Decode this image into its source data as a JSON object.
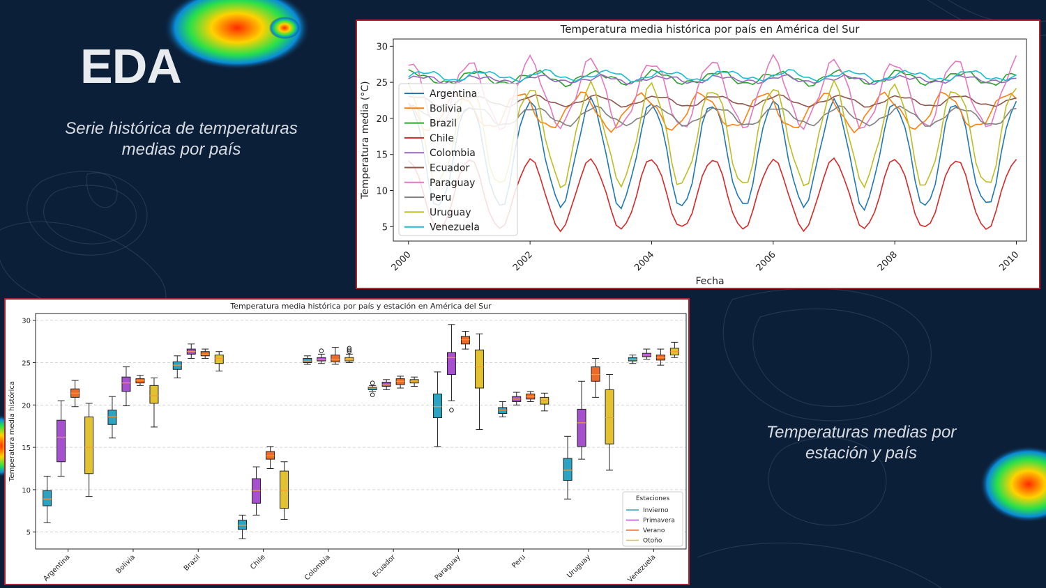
{
  "slide": {
    "title": "EDA",
    "caption_line_chart": "Serie histórica de temperaturas medias por país",
    "caption_box_chart": "Temperaturas medias por estación y país"
  },
  "colors": {
    "background": "#0c1f38",
    "panel_border": "#b3232d"
  },
  "chart_data": [
    {
      "type": "line",
      "title": "Temperatura media histórica por país en América del Sur",
      "xlabel": "Fecha",
      "ylabel": "Temperatura media (°C)",
      "x_ticks": [
        "2000",
        "2002",
        "2004",
        "2006",
        "2008",
        "2010"
      ],
      "y_ticks": [
        5,
        10,
        15,
        20,
        25,
        30
      ],
      "xlim": [
        "1999-10",
        "2010-03"
      ],
      "ylim": [
        3,
        31
      ],
      "x_range": [
        "2000-01",
        "2010-01"
      ],
      "grid": false,
      "legend": "upper left",
      "series": [
        {
          "name": "Argentina",
          "color": "#1f77b4",
          "mean": 15.0,
          "amplitude": 7.2,
          "peak_month": 1,
          "noise": 0.6
        },
        {
          "name": "Bolivia",
          "color": "#ff7f0e",
          "mean": 21.0,
          "amplitude": 2.4,
          "peak_month": 11,
          "noise": 0.5
        },
        {
          "name": "Brazil",
          "color": "#2ca02c",
          "mean": 25.6,
          "amplitude": 0.8,
          "peak_month": 2,
          "noise": 0.4
        },
        {
          "name": "Chile",
          "color": "#d62728",
          "mean": 9.5,
          "amplitude": 4.8,
          "peak_month": 1,
          "noise": 0.3
        },
        {
          "name": "Colombia",
          "color": "#9467bd",
          "mean": 25.4,
          "amplitude": 0.4,
          "peak_month": 3,
          "noise": 0.3
        },
        {
          "name": "Ecuador",
          "color": "#8c564b",
          "mean": 22.4,
          "amplitude": 0.7,
          "peak_month": 2,
          "noise": 0.2
        },
        {
          "name": "Paraguay",
          "color": "#e377c2",
          "mean": 23.4,
          "amplitude": 4.6,
          "peak_month": 1,
          "noise": 0.7
        },
        {
          "name": "Peru",
          "color": "#7f7f7f",
          "mean": 20.3,
          "amplitude": 1.2,
          "peak_month": 2,
          "noise": 0.3
        },
        {
          "name": "Uruguay",
          "color": "#bcbd22",
          "mean": 17.6,
          "amplitude": 6.8,
          "peak_month": 1,
          "noise": 0.8
        },
        {
          "name": "Venezuela",
          "color": "#17becf",
          "mean": 25.9,
          "amplitude": 0.6,
          "peak_month": 4,
          "noise": 0.3
        }
      ]
    },
    {
      "type": "box",
      "title": "Temperatura media histórica por país y estación en América del Sur",
      "xlabel": "",
      "ylabel": "Temperatura media histórica",
      "y_ticks": [
        5,
        10,
        15,
        20,
        25,
        30
      ],
      "ylim": [
        3,
        30.8
      ],
      "grid": "y dashed",
      "categories": [
        "Argentina",
        "Bolivia",
        "Brazil",
        "Chile",
        "Colombia",
        "Ecuador",
        "Paraguay",
        "Peru",
        "Uruguay",
        "Venezuela"
      ],
      "legend": {
        "title": "Estaciones",
        "position": "lower right",
        "entries": [
          "Invierno",
          "Primavera",
          "Verano",
          "Otoño"
        ]
      },
      "season_colors": {
        "Invierno": "#2ba3c2",
        "Primavera": "#a64fcf",
        "Verano": "#ee6a28",
        "Otoño": "#e3c232"
      },
      "boxes": {
        "Argentina": {
          "Invierno": {
            "min": 6.1,
            "q1": 8.1,
            "median": 8.9,
            "q3": 9.9,
            "max": 11.6,
            "outliers": []
          },
          "Primavera": {
            "min": 11.6,
            "q1": 13.3,
            "median": 16.2,
            "q3": 18.2,
            "max": 20.5,
            "outliers": []
          },
          "Verano": {
            "min": 19.8,
            "q1": 20.9,
            "median": 21.4,
            "q3": 21.9,
            "max": 22.9,
            "outliers": []
          },
          "Otoño": {
            "min": 9.2,
            "q1": 11.9,
            "median": 15.0,
            "q3": 18.6,
            "max": 20.2,
            "outliers": []
          }
        },
        "Bolivia": {
          "Invierno": {
            "min": 16.1,
            "q1": 17.7,
            "median": 18.6,
            "q3": 19.4,
            "max": 21.0,
            "outliers": []
          },
          "Primavera": {
            "min": 19.9,
            "q1": 21.6,
            "median": 22.6,
            "q3": 23.3,
            "max": 24.5,
            "outliers": []
          },
          "Verano": {
            "min": 22.3,
            "q1": 22.6,
            "median": 22.9,
            "q3": 23.1,
            "max": 23.5,
            "outliers": []
          },
          "Otoño": {
            "min": 17.4,
            "q1": 20.2,
            "median": 21.1,
            "q3": 22.3,
            "max": 23.2,
            "outliers": []
          }
        },
        "Brazil": {
          "Invierno": {
            "min": 23.2,
            "q1": 24.2,
            "median": 24.7,
            "q3": 25.1,
            "max": 25.8,
            "outliers": []
          },
          "Primavera": {
            "min": 25.5,
            "q1": 26.0,
            "median": 26.3,
            "q3": 26.6,
            "max": 27.2,
            "outliers": []
          },
          "Verano": {
            "min": 25.5,
            "q1": 25.8,
            "median": 26.0,
            "q3": 26.3,
            "max": 26.6,
            "outliers": []
          },
          "Otoño": {
            "min": 24.0,
            "q1": 24.9,
            "median": 25.5,
            "q3": 25.9,
            "max": 26.3,
            "outliers": []
          }
        },
        "Chile": {
          "Invierno": {
            "min": 4.2,
            "q1": 5.3,
            "median": 5.8,
            "q3": 6.4,
            "max": 7.0,
            "outliers": []
          },
          "Primavera": {
            "min": 7.0,
            "q1": 8.4,
            "median": 9.9,
            "q3": 11.3,
            "max": 12.7,
            "outliers": []
          },
          "Verano": {
            "min": 12.5,
            "q1": 13.6,
            "median": 14.0,
            "q3": 14.5,
            "max": 15.1,
            "outliers": []
          },
          "Otoño": {
            "min": 6.5,
            "q1": 7.8,
            "median": 9.9,
            "q3": 12.2,
            "max": 13.3,
            "outliers": []
          }
        },
        "Colombia": {
          "Invierno": {
            "min": 24.8,
            "q1": 25.0,
            "median": 25.2,
            "q3": 25.5,
            "max": 25.8,
            "outliers": []
          },
          "Primavera": {
            "min": 24.9,
            "q1": 25.2,
            "median": 25.4,
            "q3": 25.6,
            "max": 26.0,
            "outliers": [
              26.4
            ]
          },
          "Verano": {
            "min": 24.8,
            "q1": 25.1,
            "median": 25.4,
            "q3": 25.9,
            "max": 26.8,
            "outliers": []
          },
          "Otoño": {
            "min": 25.0,
            "q1": 25.2,
            "median": 25.4,
            "q3": 25.6,
            "max": 26.0,
            "outliers": [
              26.3,
              26.5,
              26.7
            ]
          }
        },
        "Ecuador": {
          "Invierno": {
            "min": 21.6,
            "q1": 21.8,
            "median": 22.0,
            "q3": 22.1,
            "max": 22.3,
            "outliers": [
              21.2,
              22.6
            ]
          },
          "Primavera": {
            "min": 21.8,
            "q1": 22.2,
            "median": 22.4,
            "q3": 22.7,
            "max": 23.0,
            "outliers": []
          },
          "Verano": {
            "min": 22.0,
            "q1": 22.4,
            "median": 22.8,
            "q3": 23.1,
            "max": 23.4,
            "outliers": []
          },
          "Otoño": {
            "min": 22.2,
            "q1": 22.6,
            "median": 22.8,
            "q3": 23.0,
            "max": 23.3,
            "outliers": []
          }
        },
        "Paraguay": {
          "Invierno": {
            "min": 15.1,
            "q1": 18.5,
            "median": 19.8,
            "q3": 21.3,
            "max": 23.9,
            "outliers": []
          },
          "Primavera": {
            "min": 20.5,
            "q1": 23.6,
            "median": 25.6,
            "q3": 26.2,
            "max": 29.5,
            "outliers": [
              19.4
            ]
          },
          "Verano": {
            "min": 26.6,
            "q1": 27.2,
            "median": 27.7,
            "q3": 28.1,
            "max": 28.7,
            "outliers": []
          },
          "Otoño": {
            "min": 17.1,
            "q1": 22.0,
            "median": 24.5,
            "q3": 26.5,
            "max": 28.4,
            "outliers": []
          }
        },
        "Peru": {
          "Invierno": {
            "min": 18.6,
            "q1": 19.0,
            "median": 19.4,
            "q3": 19.7,
            "max": 20.4,
            "outliers": []
          },
          "Primavera": {
            "min": 20.0,
            "q1": 20.4,
            "median": 20.7,
            "q3": 21.0,
            "max": 21.5,
            "outliers": []
          },
          "Verano": {
            "min": 20.4,
            "q1": 20.7,
            "median": 21.0,
            "q3": 21.3,
            "max": 21.6,
            "outliers": []
          },
          "Otoño": {
            "min": 19.3,
            "q1": 20.1,
            "median": 20.5,
            "q3": 20.9,
            "max": 21.4,
            "outliers": []
          }
        },
        "Uruguay": {
          "Invierno": {
            "min": 8.9,
            "q1": 11.1,
            "median": 12.3,
            "q3": 13.7,
            "max": 16.3,
            "outliers": []
          },
          "Primavera": {
            "min": 13.6,
            "q1": 15.1,
            "median": 17.9,
            "q3": 19.5,
            "max": 22.8,
            "outliers": []
          },
          "Verano": {
            "min": 20.9,
            "q1": 22.8,
            "median": 23.6,
            "q3": 24.5,
            "max": 25.5,
            "outliers": []
          },
          "Otoño": {
            "min": 12.3,
            "q1": 15.4,
            "median": 18.5,
            "q3": 21.8,
            "max": 23.6,
            "outliers": []
          }
        },
        "Venezuela": {
          "Invierno": {
            "min": 24.9,
            "q1": 25.2,
            "median": 25.4,
            "q3": 25.6,
            "max": 25.9,
            "outliers": []
          },
          "Primavera": {
            "min": 25.4,
            "q1": 25.7,
            "median": 25.9,
            "q3": 26.1,
            "max": 26.6,
            "outliers": []
          },
          "Verano": {
            "min": 24.7,
            "q1": 25.3,
            "median": 25.6,
            "q3": 25.9,
            "max": 26.6,
            "outliers": []
          },
          "Otoño": {
            "min": 25.6,
            "q1": 25.9,
            "median": 26.3,
            "q3": 26.7,
            "max": 27.4,
            "outliers": []
          }
        }
      }
    }
  ]
}
